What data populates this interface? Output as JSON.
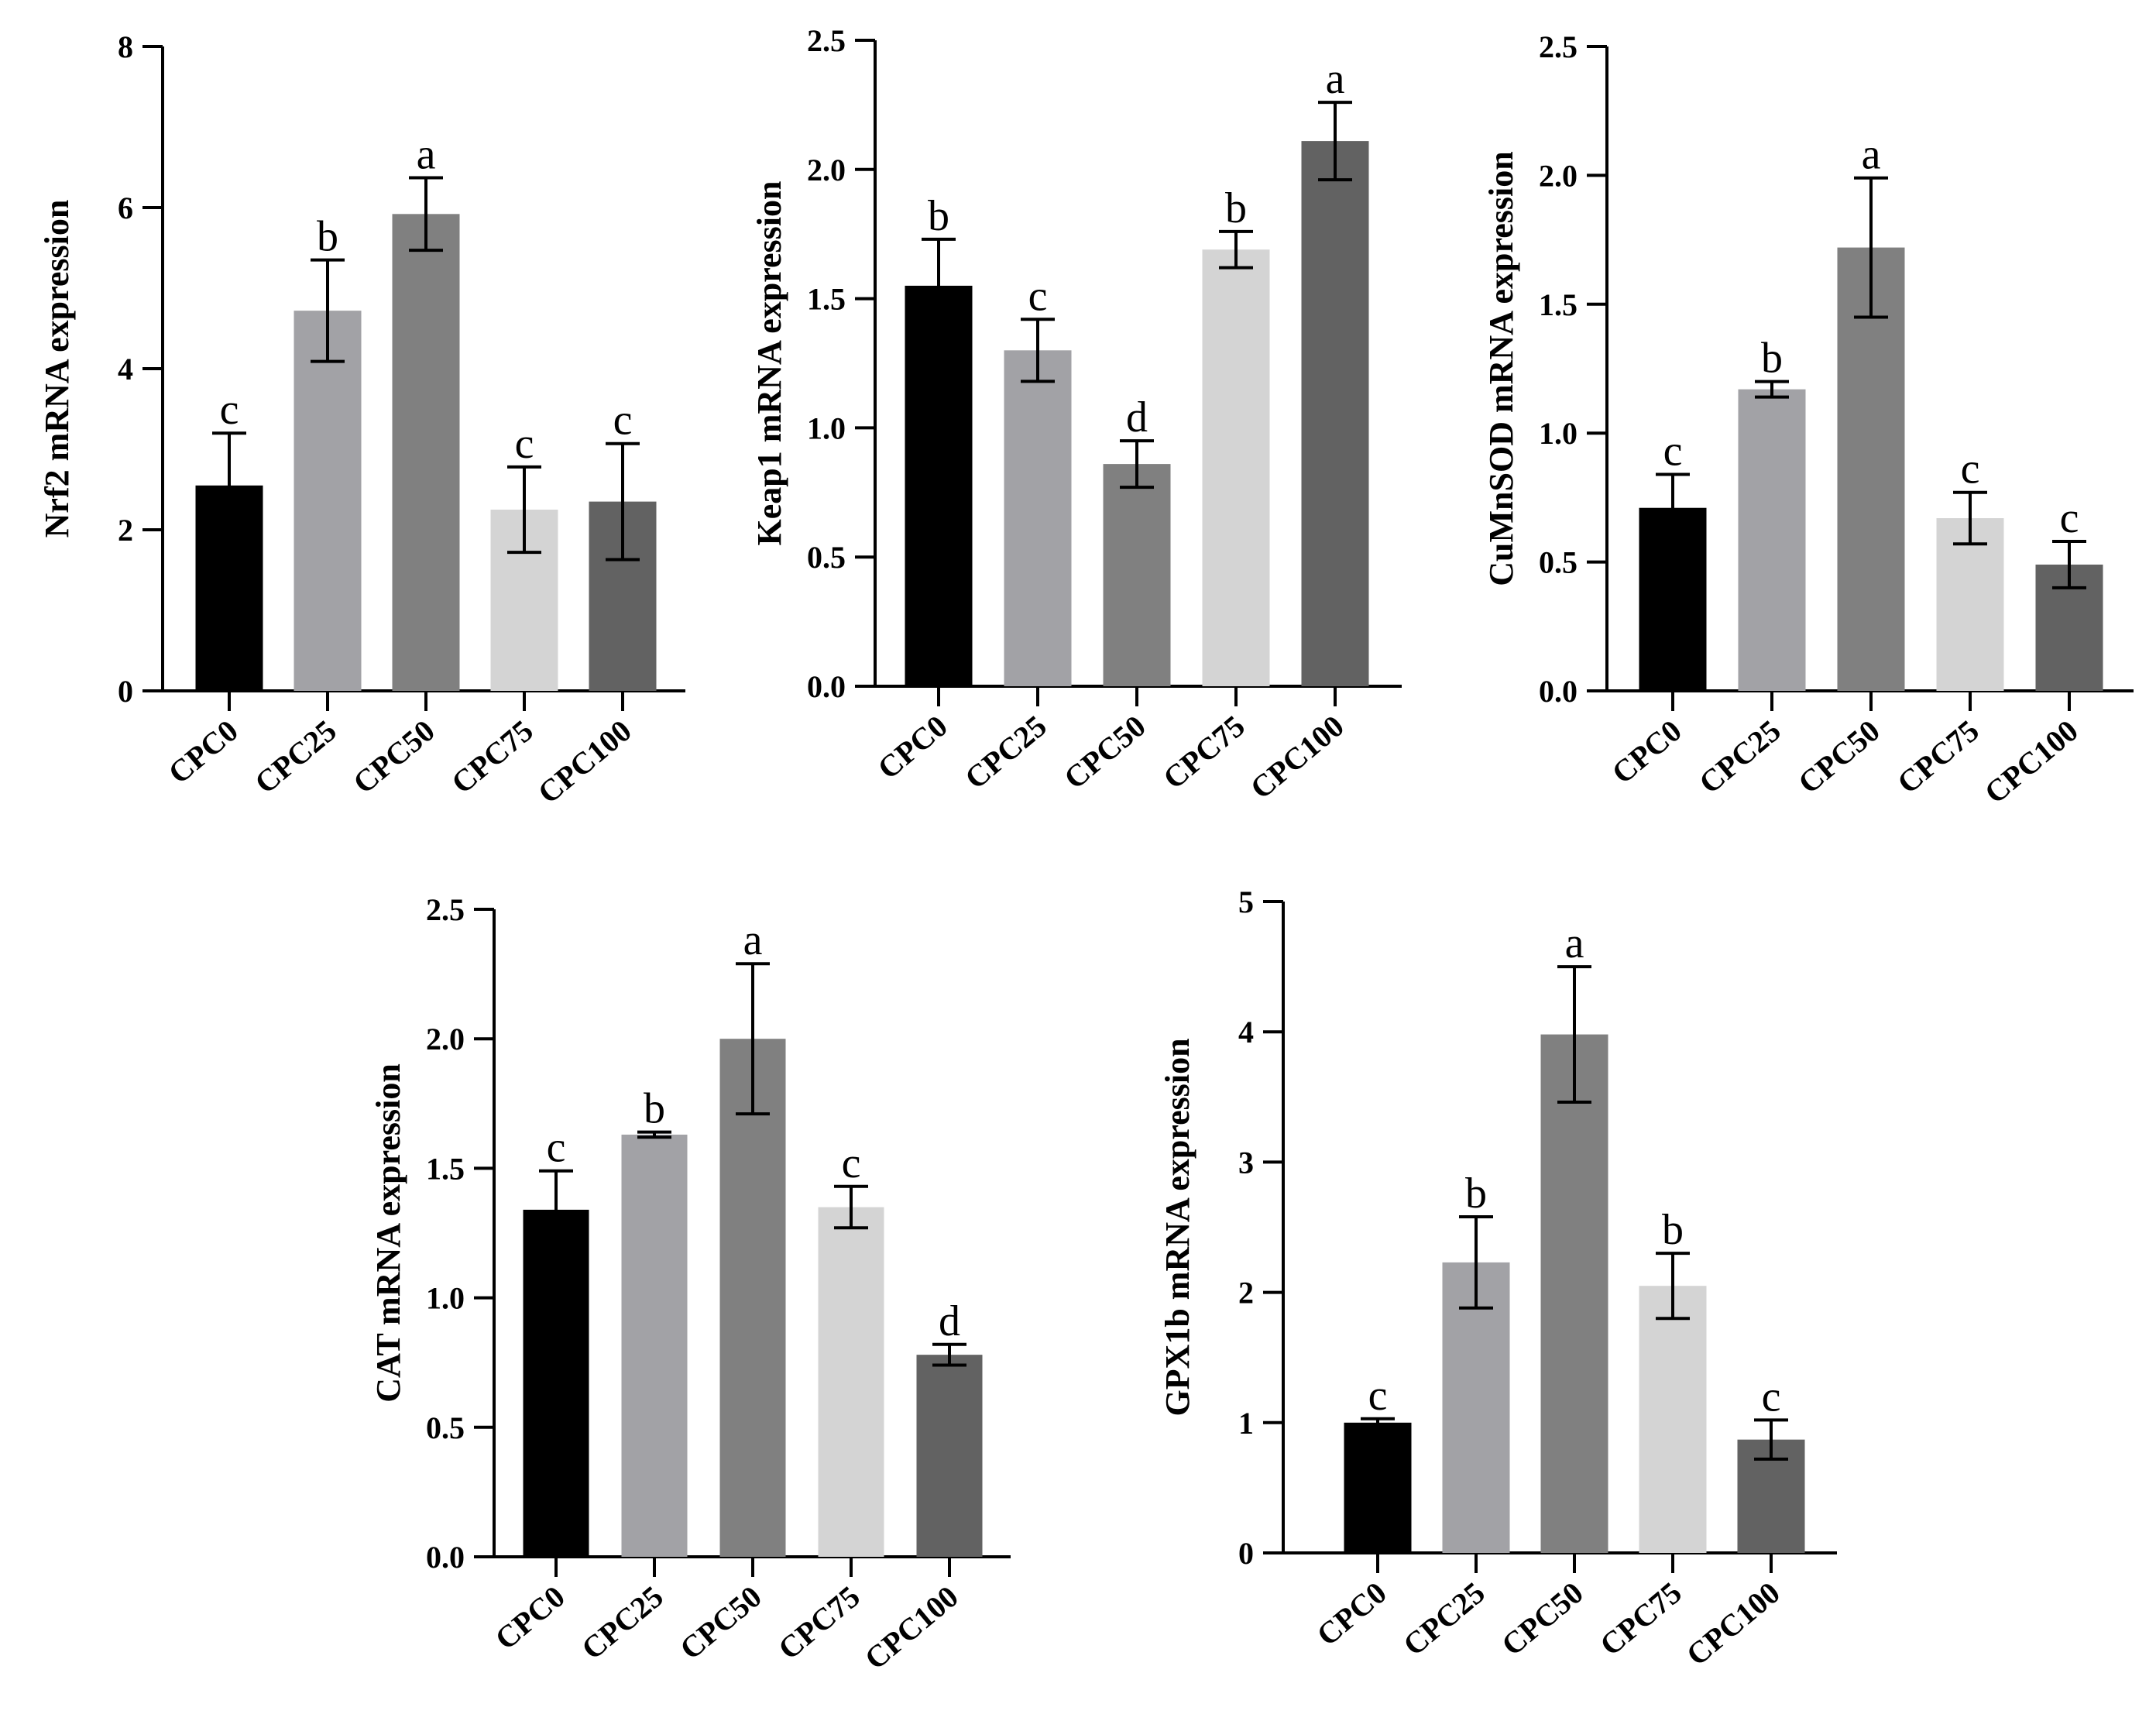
{
  "chart_data": [
    {
      "type": "bar",
      "ylabel": "Nrf2 mRNA expression",
      "categories": [
        "CPC0",
        "CPC25",
        "CPC50",
        "CPC75",
        "CPC100"
      ],
      "values": [
        2.55,
        4.72,
        5.92,
        2.25,
        2.35
      ],
      "errors": [
        0.65,
        0.63,
        0.45,
        0.53,
        0.72
      ],
      "letters": [
        "c",
        "b",
        "a",
        "c",
        "c"
      ],
      "ylim": [
        0,
        8
      ],
      "yticks": [
        0,
        2,
        4,
        6,
        8
      ],
      "tick_labels": [
        "0",
        "2",
        "4",
        "6",
        "8"
      ]
    },
    {
      "type": "bar",
      "ylabel": "Keap1 mRNA expression",
      "categories": [
        "CPC0",
        "CPC25",
        "CPC50",
        "CPC75",
        "CPC100"
      ],
      "values": [
        1.55,
        1.3,
        0.86,
        1.69,
        2.11
      ],
      "errors": [
        0.18,
        0.12,
        0.09,
        0.07,
        0.15
      ],
      "letters": [
        "b",
        "c",
        "d",
        "b",
        "a"
      ],
      "ylim": [
        0,
        2.5
      ],
      "yticks": [
        0,
        0.5,
        1.0,
        1.5,
        2.0,
        2.5
      ],
      "tick_labels": [
        "0.0",
        "0.5",
        "1.0",
        "1.5",
        "2.0",
        "2.5"
      ]
    },
    {
      "type": "bar",
      "ylabel": "CuMnSOD mRNA expression",
      "categories": [
        "CPC0",
        "CPC25",
        "CPC50",
        "CPC75",
        "CPC100"
      ],
      "values": [
        0.71,
        1.17,
        1.72,
        0.67,
        0.49
      ],
      "errors": [
        0.13,
        0.03,
        0.27,
        0.1,
        0.09
      ],
      "letters": [
        "c",
        "b",
        "a",
        "c",
        "c"
      ],
      "ylim": [
        0,
        2.5
      ],
      "yticks": [
        0,
        0.5,
        1.0,
        1.5,
        2.0,
        2.5
      ],
      "tick_labels": [
        "0.0",
        "0.5",
        "1.0",
        "1.5",
        "2.0",
        "2.5"
      ]
    },
    {
      "type": "bar",
      "ylabel": "CAT mRNA expression",
      "categories": [
        "CPC0",
        "CPC25",
        "CPC50",
        "CPC75",
        "CPC100"
      ],
      "values": [
        1.34,
        1.63,
        2.0,
        1.35,
        0.78
      ],
      "errors": [
        0.15,
        0.01,
        0.29,
        0.08,
        0.04
      ],
      "letters": [
        "c",
        "b",
        "a",
        "c",
        "d"
      ],
      "ylim": [
        0,
        2.5
      ],
      "yticks": [
        0,
        0.5,
        1.0,
        1.5,
        2.0,
        2.5
      ],
      "tick_labels": [
        "0.0",
        "0.5",
        "1.0",
        "1.5",
        "2.0",
        "2.5"
      ]
    },
    {
      "type": "bar",
      "ylabel": "GPX1b mRNA expression",
      "categories": [
        "CPC0",
        "CPC25",
        "CPC50",
        "CPC75",
        "CPC100"
      ],
      "values": [
        1.0,
        2.23,
        3.98,
        2.05,
        0.87
      ],
      "errors": [
        0.03,
        0.35,
        0.52,
        0.25,
        0.15
      ],
      "letters": [
        "c",
        "b",
        "a",
        "b",
        "c"
      ],
      "ylim": [
        0,
        5
      ],
      "yticks": [
        0,
        1,
        2,
        3,
        4,
        5
      ],
      "tick_labels": [
        "0",
        "1",
        "2",
        "3",
        "4",
        "5"
      ]
    }
  ],
  "colors": {
    "bars": [
      "#000000",
      "#a2a2a6",
      "#808080",
      "#d4d4d4",
      "#626262"
    ],
    "axis": "#000000"
  }
}
